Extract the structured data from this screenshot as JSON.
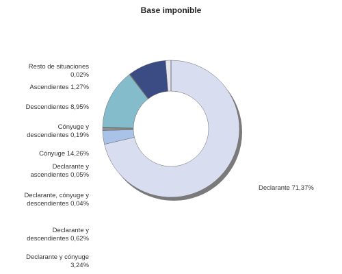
{
  "chart_data": {
    "type": "donut",
    "title": "Base imponible",
    "categories": [
      "Declarante",
      "Declarante y cónyuge",
      "Declarante y descendientes",
      "Declarante, cónyuge y descendientes",
      "Declarante y ascendientes",
      "Cónyuge",
      "Cónyuge y descendientes",
      "Descendientes",
      "Ascendientes",
      "Resto de situaciones"
    ],
    "values": [
      71.37,
      3.24,
      0.62,
      0.04,
      0.05,
      14.26,
      0.19,
      8.95,
      1.27,
      0.02
    ],
    "value_labels": [
      "71,37%",
      "3,24%",
      "0,62%",
      "0,04%",
      "0,05%",
      "14,26%",
      "0,19%",
      "8,95%",
      "1,27%",
      "0,02%"
    ],
    "colors": [
      "#d9ddf0",
      "#a9c3e8",
      "#8e8e8e",
      "#8e8e8e",
      "#8e8e8e",
      "#84bccc",
      "#6e6e6e",
      "#3b4c85",
      "#e6e6ee",
      "#b0b0b0"
    ]
  }
}
